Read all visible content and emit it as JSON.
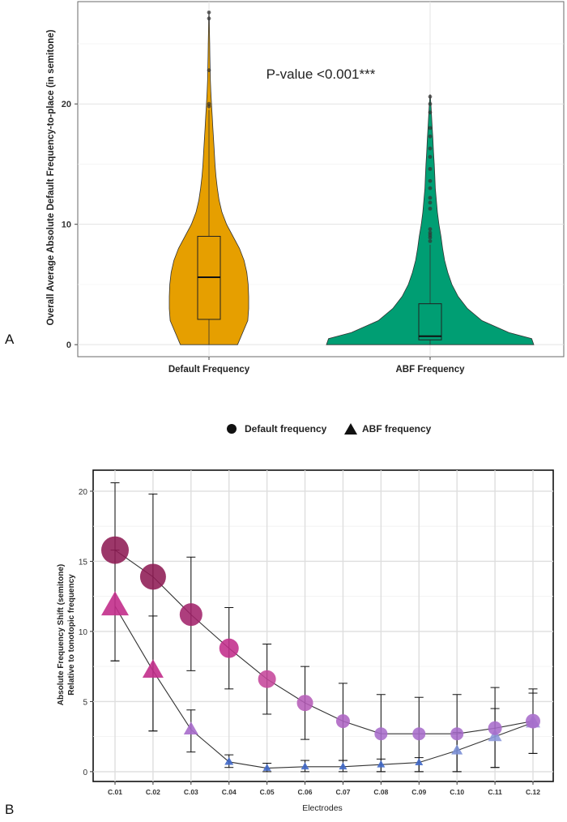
{
  "chart_data": [
    {
      "type": "violin",
      "panel_label": "A",
      "title": "",
      "xlabel": "",
      "ylabel": "Overall Average Absolute Default Frequency-to-place (in semitone)",
      "ylim": [
        -1,
        28.5
      ],
      "yticks": [
        0,
        10,
        20
      ],
      "grid": true,
      "annotation": "P-value <0.001***",
      "categories": [
        "Default Frequency",
        "ABF Frequency"
      ],
      "colors": [
        "#E69F00",
        "#009E73"
      ],
      "series": [
        {
          "category": "Default Frequency",
          "box": {
            "min": 0,
            "q1": 2.1,
            "median": 5.6,
            "q3": 9.0,
            "max": 19.5
          },
          "outliers": [
            19.8,
            20.0,
            22.8,
            27.1,
            27.6
          ],
          "density": [
            [
              0,
              0.62
            ],
            [
              1,
              0.73
            ],
            [
              2,
              0.84
            ],
            [
              3,
              0.86
            ],
            [
              4,
              0.86
            ],
            [
              5,
              0.85
            ],
            [
              6,
              0.82
            ],
            [
              7,
              0.76
            ],
            [
              8,
              0.66
            ],
            [
              9,
              0.52
            ],
            [
              10,
              0.38
            ],
            [
              11,
              0.28
            ],
            [
              12,
              0.22
            ],
            [
              13,
              0.18
            ],
            [
              14,
              0.15
            ],
            [
              15,
              0.13
            ],
            [
              16,
              0.115
            ],
            [
              17,
              0.1
            ],
            [
              18,
              0.085
            ],
            [
              19,
              0.07
            ],
            [
              20,
              0.055
            ],
            [
              21,
              0.04
            ],
            [
              22,
              0.03
            ],
            [
              23,
              0.025
            ],
            [
              24,
              0.02
            ],
            [
              25,
              0.015
            ],
            [
              26,
              0.01
            ],
            [
              27,
              0.007
            ],
            [
              27.7,
              0.0
            ]
          ]
        },
        {
          "category": "ABF Frequency",
          "box": {
            "min": 0,
            "q1": 0.4,
            "median": 0.7,
            "q3": 3.4,
            "max": 8.3
          },
          "outliers": [
            8.6,
            8.9,
            9.1,
            9.3,
            9.6,
            11.3,
            11.8,
            12.2,
            13.0,
            13.6,
            14.6,
            15.6,
            16.3,
            17.3,
            18.0,
            19.3,
            20.0,
            20.6
          ],
          "density": [
            [
              0,
              1.0
            ],
            [
              0.5,
              0.98
            ],
            [
              1,
              0.76
            ],
            [
              2,
              0.5
            ],
            [
              3,
              0.36
            ],
            [
              4,
              0.27
            ],
            [
              5,
              0.21
            ],
            [
              6,
              0.17
            ],
            [
              7,
              0.14
            ],
            [
              8,
              0.12
            ],
            [
              9,
              0.105
            ],
            [
              10,
              0.085
            ],
            [
              11,
              0.07
            ],
            [
              12,
              0.06
            ],
            [
              13,
              0.05
            ],
            [
              14,
              0.045
            ],
            [
              15,
              0.04
            ],
            [
              16,
              0.033
            ],
            [
              17,
              0.027
            ],
            [
              18,
              0.02
            ],
            [
              19,
              0.014
            ],
            [
              20,
              0.008
            ],
            [
              20.8,
              0.0
            ]
          ]
        }
      ]
    },
    {
      "type": "line",
      "panel_label": "B",
      "title": "",
      "xlabel": "Electrodes",
      "ylabel": "Absolute Frequency Shift (semitone)",
      "ylabel_line2": "Relative to tonotopic frequency",
      "ylim": [
        -0.7,
        21.5
      ],
      "yticks": [
        0,
        5,
        10,
        15,
        20
      ],
      "grid": true,
      "legend": {
        "placement": "top",
        "entries": [
          {
            "label": "Default frequency",
            "shape": "circle"
          },
          {
            "label": "ABF frequency",
            "shape": "triangle"
          }
        ]
      },
      "categories": [
        "C.01",
        "C.02",
        "C.03",
        "C.04",
        "C.05",
        "C.06",
        "C.07",
        "C.08",
        "C.09",
        "C.10",
        "C.11",
        "C.12"
      ],
      "series": [
        {
          "name": "Default frequency",
          "marker": "circle",
          "values": [
            15.8,
            13.9,
            11.2,
            8.8,
            6.6,
            4.9,
            3.6,
            2.7,
            2.7,
            2.7,
            3.1,
            3.6
          ],
          "error_low": [
            7.9,
            2.9,
            7.2,
            5.9,
            4.1,
            2.3,
            0.8,
            0.0,
            0.0,
            0.0,
            0.3,
            1.3
          ],
          "error_high": [
            20.6,
            19.8,
            15.3,
            11.7,
            9.1,
            7.5,
            6.3,
            5.5,
            5.3,
            5.5,
            6.0,
            5.9
          ],
          "marker_sizes": [
            17,
            16,
            14,
            12,
            11,
            10,
            8.5,
            8,
            8,
            8,
            8.5,
            9
          ],
          "marker_colors": [
            "#8E1B54",
            "#8E1B54",
            "#A2236B",
            "#C22D8B",
            "#C5479B",
            "#B65DB8",
            "#AD63C3",
            "#A76CCB",
            "#A76CCB",
            "#A76CCB",
            "#A76CCB",
            "#A76CCB"
          ]
        },
        {
          "name": "ABF frequency",
          "marker": "triangle",
          "values": [
            11.8,
            7.2,
            3.0,
            0.7,
            0.25,
            0.35,
            0.35,
            0.5,
            0.65,
            1.5,
            2.5,
            3.5
          ],
          "error_low": [
            7.9,
            2.9,
            1.4,
            0.3,
            0.0,
            0.0,
            0.0,
            0.0,
            0.0,
            0.0,
            0.3,
            1.3
          ],
          "error_high": [
            15.8,
            11.1,
            4.4,
            1.2,
            0.6,
            0.8,
            0.8,
            0.9,
            1.0,
            2.8,
            4.5,
            5.6
          ],
          "marker_sizes": [
            17,
            13,
            9,
            5.5,
            5,
            5,
            5,
            5,
            5,
            7,
            8.5,
            9
          ],
          "marker_colors": [
            "#C22D8B",
            "#C22D8B",
            "#A76CCB",
            "#4169C9",
            "#4169C9",
            "#4169C9",
            "#4169C9",
            "#4169C9",
            "#4169C9",
            "#7A8FD6",
            "#8D99DA",
            "#9C92D6"
          ]
        }
      ]
    }
  ]
}
